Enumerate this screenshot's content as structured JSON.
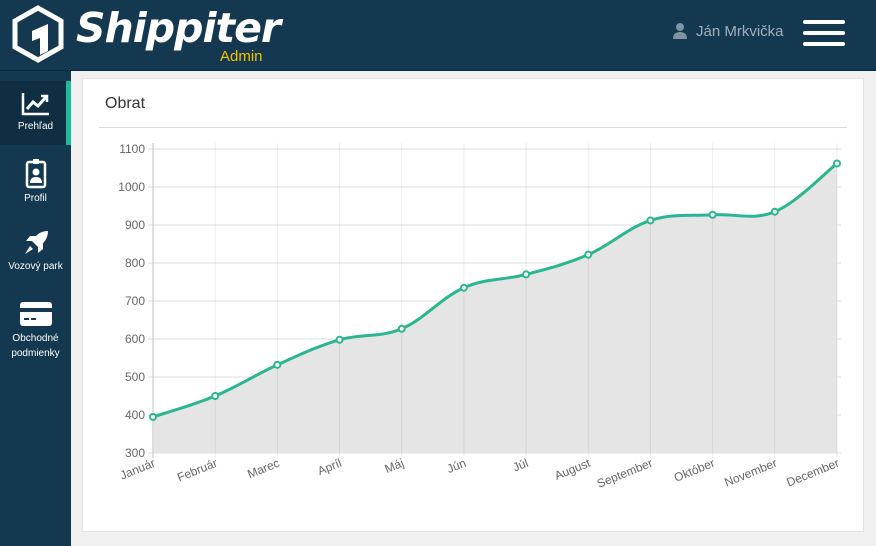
{
  "app": {
    "brand": "Shippiter",
    "brand_sub": "Admin",
    "user_name": "Ján Mrkvička",
    "icons": {
      "logo": "shippiter-logo-icon",
      "user": "user-icon",
      "menu": "hamburger-menu-icon"
    }
  },
  "sidebar": {
    "items": [
      {
        "label": "Prehľad",
        "icon": "line-chart-icon",
        "active": true
      },
      {
        "label": "Profil",
        "icon": "id-badge-icon",
        "active": false
      },
      {
        "label": "Vozový park",
        "icon": "rocket-icon",
        "active": false
      },
      {
        "label": "Obchodné podmienky",
        "icon": "credit-card-icon",
        "active": false
      }
    ]
  },
  "main": {
    "panel_title": "Obrat"
  },
  "colors": {
    "accent": "#1abc9c",
    "line": "#2ab68f",
    "fill": "#e5e5e5",
    "topbar": "#13384f",
    "brand_sub": "#f2c300"
  },
  "chart_data": {
    "type": "area",
    "title": "",
    "xlabel": "",
    "ylabel": "",
    "categories": [
      "Január",
      "Február",
      "Marec",
      "Apríl",
      "Máj",
      "Jún",
      "Júl",
      "August",
      "September",
      "Október",
      "November",
      "December"
    ],
    "series": [
      {
        "values": [
          395,
          450,
          532,
          598,
          627,
          735,
          770,
          822,
          912,
          927,
          935,
          1062
        ]
      }
    ],
    "ylim": [
      300,
      1100
    ],
    "yticks": [
      300,
      400,
      500,
      600,
      700,
      800,
      900,
      1000,
      1100
    ],
    "grid": true,
    "smooth": true
  }
}
